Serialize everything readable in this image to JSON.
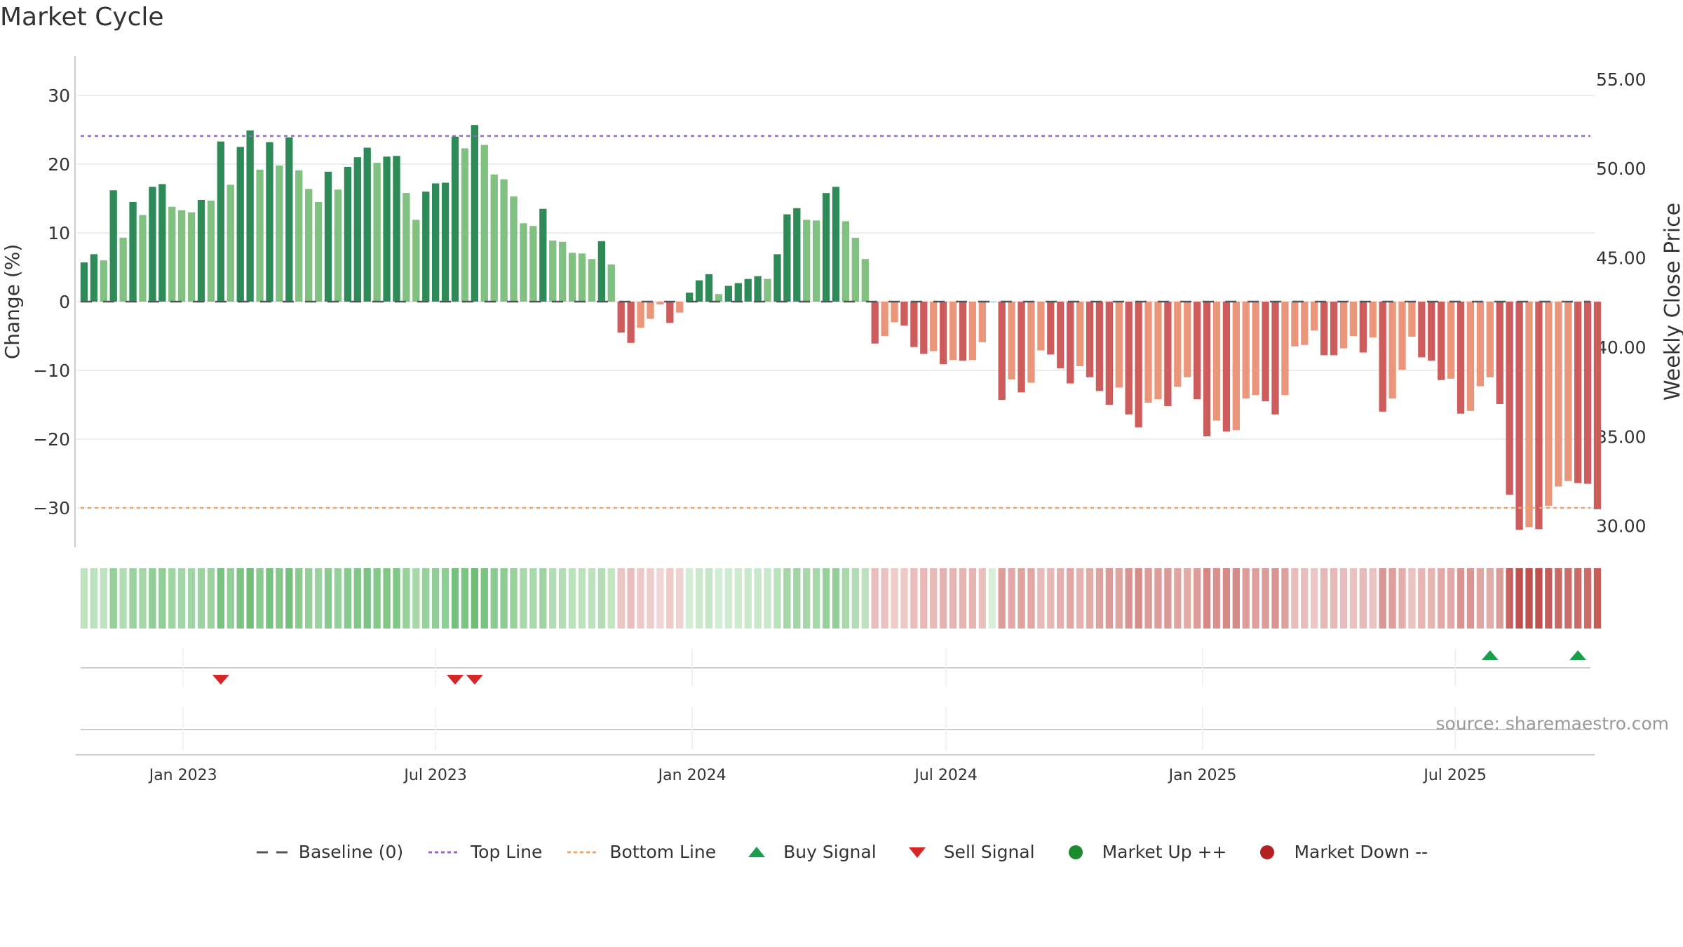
{
  "chart_data": {
    "type": "bar",
    "title": "Market Cycle",
    "ylabel": "Change (%)",
    "y2label": "Weekly Close Price",
    "ylim": [
      -36,
      36
    ],
    "y2lim": [
      28.7,
      56.4
    ],
    "yticks": [
      30,
      20,
      10,
      0,
      -10,
      -20,
      -30
    ],
    "ytick_labels": [
      "30",
      "20",
      "10",
      "0",
      "−10",
      "−20",
      "−30"
    ],
    "y2ticks": [
      55,
      50,
      45,
      40,
      35,
      30
    ],
    "y2tick_labels": [
      "55.00",
      "50.00",
      "45.00",
      "40.00",
      "35.00",
      "30.00"
    ],
    "x_start": "2022-10-22",
    "x_step_days": 7,
    "xlim": [
      "2022-10-17",
      "2025-10-09"
    ],
    "xticks": [
      "2023-01-01",
      "2023-07-01",
      "2024-01-01",
      "2024-07-01",
      "2025-01-01",
      "2025-07-01"
    ],
    "xtick_labels": [
      "Jan 2023",
      "Jul 2023",
      "Jan 2024",
      "Jul 2024",
      "Jan 2025",
      "Jul 2025"
    ],
    "values": [
      5.7,
      6.9,
      6.0,
      16.2,
      9.3,
      14.5,
      12.6,
      16.7,
      17.1,
      13.8,
      13.3,
      13.0,
      14.8,
      14.7,
      23.3,
      17.0,
      22.5,
      24.9,
      19.2,
      23.2,
      19.8,
      23.9,
      19.1,
      16.4,
      14.5,
      18.9,
      16.3,
      19.6,
      21.0,
      22.4,
      20.2,
      21.1,
      21.2,
      15.8,
      11.9,
      16.0,
      17.2,
      17.3,
      24.0,
      22.3,
      25.7,
      22.8,
      18.5,
      17.8,
      15.3,
      11.4,
      11.0,
      13.5,
      8.9,
      8.7,
      7.1,
      7.0,
      6.2,
      8.8,
      5.4,
      -4.5,
      -6.0,
      -3.8,
      -2.5,
      -0.4,
      -3.1,
      -1.6,
      1.3,
      3.1,
      4.0,
      1.1,
      2.3,
      2.7,
      3.3,
      3.7,
      3.3,
      6.9,
      12.7,
      13.6,
      11.9,
      11.8,
      15.8,
      16.7,
      11.7,
      9.3,
      6.2,
      -6.1,
      -5.0,
      -3.0,
      -3.5,
      -6.6,
      -7.6,
      -7.2,
      -9.1,
      -8.5,
      -8.6,
      -8.5,
      -5.9,
      0,
      -14.3,
      -11.3,
      -13.2,
      -11.8,
      -7.1,
      -7.7,
      -9.7,
      -11.9,
      -9.4,
      -11.0,
      -13.0,
      -15.0,
      -12.5,
      -16.4,
      -18.3,
      -14.7,
      -14.2,
      -15.2,
      -12.4,
      -11.0,
      -14.2,
      -19.6,
      -17.3,
      -18.9,
      -18.7,
      -14.1,
      -13.6,
      -14.5,
      -16.4,
      -13.6,
      -6.5,
      -6.3,
      -4.2,
      -7.8,
      -7.8,
      -6.8,
      -5.0,
      -7.4,
      -5.2,
      -16.0,
      -14.1,
      -9.9,
      -5.1,
      -8.1,
      -8.6,
      -11.4,
      -11.2,
      -16.3,
      -15.9,
      -12.3,
      -11.0,
      -14.9,
      -28.1,
      -33.2,
      -32.8,
      -33.1,
      -29.7,
      -26.9,
      -26.1,
      -26.4,
      -26.5,
      -30.2
    ],
    "top_line": 24.1,
    "bottom_line": -30.0,
    "buy_signals": [
      "2025-07-26",
      "2025-09-27"
    ],
    "sell_signals": [
      "2023-01-28",
      "2023-07-15",
      "2023-07-29"
    ],
    "colors": {
      "up_strong": "#2e8b57",
      "up_weak": "#80c080",
      "down_strong": "#cd5c5c",
      "down_weak": "#e9967a",
      "baseline": "#555555",
      "top_line": "#9966cc",
      "bottom_line": "#f4a460",
      "buy": "#1a9e4a",
      "sell": "#d62728",
      "market_up": "#1e8a2e",
      "market_down": "#b22222",
      "grid": "#e6e6e6",
      "axis": "#cccccc"
    },
    "legend": [
      {
        "label": "Baseline (0)",
        "symbol": "dash-dash"
      },
      {
        "label": "Top Line",
        "symbol": "dotted-purple"
      },
      {
        "label": "Bottom Line",
        "symbol": "dotted-orange"
      },
      {
        "label": "Buy Signal",
        "symbol": "triangle-up"
      },
      {
        "label": "Sell Signal",
        "symbol": "triangle-down"
      },
      {
        "label": "Market Up ++",
        "symbol": "circle-green"
      },
      {
        "label": "Market Down --",
        "symbol": "circle-red"
      }
    ],
    "legend_position": "bottom-center",
    "grid": true
  },
  "watermark": "source: sharemaestro.com"
}
